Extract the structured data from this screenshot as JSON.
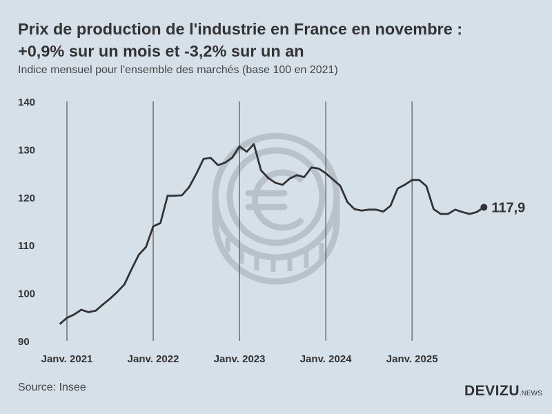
{
  "title_line1": "Prix de production de l'industrie en France en novembre :",
  "title_line2": "+0,9% sur un mois et -3,2% sur un an",
  "subtitle": "Indice mensuel pour l'ensemble des marchés (base 100 en 2021)",
  "source": "Source: Insee",
  "logo": {
    "main": "DEVIZU",
    "suffix": ".NEWS"
  },
  "colors": {
    "background": "#d6e0e8",
    "line": "#333333",
    "watermark": "#b5bfc7"
  },
  "watermark_icon": "euro-coin-icon",
  "chart_data": {
    "type": "line",
    "title": "Prix de production de l'industrie en France en novembre : +0,9% sur un mois et -3,2% sur un an",
    "subtitle": "Indice mensuel pour l'ensemble des marchés (base 100 en 2021)",
    "xlabel": "",
    "ylabel": "",
    "ylim": [
      90,
      140
    ],
    "yticks": [
      "90",
      "100",
      "110",
      "120",
      "130",
      "140"
    ],
    "xticks": [
      "Janv. 2021",
      "Janv. 2022",
      "Janv. 2023",
      "Janv. 2024",
      "Janv. 2025"
    ],
    "grid": "vertical lines at January",
    "x_start": "2020-12",
    "x_end": "2025-11",
    "values": [
      93.5,
      94.8,
      95.5,
      96.5,
      96.0,
      96.3,
      97.6,
      98.8,
      100.2,
      101.8,
      105.0,
      108.0,
      109.6,
      113.9,
      114.6,
      120.3,
      120.3,
      120.4,
      122.1,
      124.9,
      128.0,
      128.2,
      126.7,
      127.2,
      128.3,
      130.6,
      129.5,
      131.1,
      125.6,
      124.0,
      123.0,
      122.6,
      123.9,
      124.6,
      124.2,
      126.2,
      126.0,
      125.0,
      123.7,
      122.4,
      119.0,
      117.5,
      117.2,
      117.4,
      117.4,
      117.0,
      118.2,
      121.8,
      122.6,
      123.6,
      123.6,
      122.3,
      117.5,
      116.5,
      116.5,
      117.4,
      116.9,
      116.5,
      116.9,
      117.9
    ],
    "end_label": "117,9"
  }
}
